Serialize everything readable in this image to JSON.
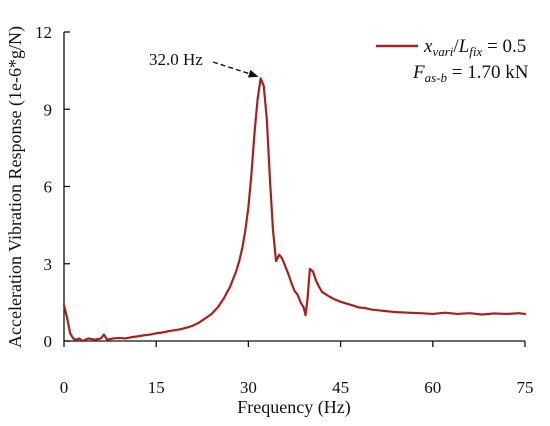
{
  "chart_data": {
    "type": "line",
    "xlabel": "Frequency (Hz)",
    "ylabel": "Acceleration Vibration Response (1e-6*g/N)",
    "xlim": [
      0,
      75
    ],
    "ylim": [
      0,
      12
    ],
    "xticks": [
      0,
      15,
      30,
      45,
      60,
      75
    ],
    "yticks": [
      0,
      3,
      6,
      9,
      12
    ],
    "xtick_labels": [
      "0",
      "15",
      "30",
      "45",
      "60",
      "75"
    ],
    "ytick_labels": [
      "0",
      "3",
      "6",
      "9",
      "12"
    ],
    "grid": false,
    "legend_position": "top-right",
    "legend": {
      "line1": {
        "var1": "x",
        "sub1": "vari",
        "sep": "/",
        "var2": "L",
        "sub2": "fix",
        "value": " = 0.5"
      },
      "line2": {
        "var": "F",
        "sub": "as-b",
        "value": " = 1.70 kN"
      }
    },
    "annotation": {
      "text": "32.0 Hz",
      "x": 32.0,
      "y": 10.2
    },
    "series": [
      {
        "color": "#a3221f",
        "x": [
          0,
          0.5,
          1,
          1.5,
          2,
          2.5,
          3,
          4,
          5,
          6,
          6.5,
          7,
          8,
          9,
          10,
          11,
          12,
          13,
          14,
          15,
          16,
          17,
          18,
          19,
          20,
          21,
          22,
          23,
          24,
          25,
          26,
          27,
          28,
          28.5,
          29,
          29.5,
          30,
          30.5,
          31,
          31.5,
          32,
          32.5,
          33,
          33.5,
          34,
          34.5,
          35,
          35.5,
          36,
          36.5,
          37,
          37.5,
          38,
          38.5,
          39,
          39.3,
          39.6,
          40,
          40.5,
          41,
          41.5,
          42,
          43,
          44,
          45,
          46,
          47,
          48,
          49,
          50,
          52,
          54,
          56,
          58,
          60,
          62,
          64,
          66,
          68,
          70,
          72,
          74,
          75
        ],
        "y": [
          1.4,
          0.9,
          0.3,
          0.1,
          0.05,
          0.1,
          0.0,
          0.1,
          0.05,
          0.1,
          0.25,
          0.05,
          0.1,
          0.12,
          0.1,
          0.15,
          0.18,
          0.22,
          0.25,
          0.3,
          0.33,
          0.38,
          0.42,
          0.46,
          0.52,
          0.6,
          0.72,
          0.88,
          1.05,
          1.3,
          1.65,
          2.1,
          2.7,
          3.1,
          3.6,
          4.3,
          5.2,
          6.5,
          8.1,
          9.4,
          10.2,
          9.9,
          8.6,
          6.3,
          4.3,
          3.1,
          3.35,
          3.2,
          2.9,
          2.6,
          2.25,
          1.95,
          1.8,
          1.5,
          1.3,
          1.0,
          1.6,
          2.8,
          2.7,
          2.35,
          2.1,
          1.9,
          1.75,
          1.62,
          1.52,
          1.45,
          1.38,
          1.3,
          1.28,
          1.22,
          1.17,
          1.12,
          1.1,
          1.08,
          1.05,
          1.1,
          1.05,
          1.08,
          1.03,
          1.07,
          1.05,
          1.08,
          1.05
        ]
      }
    ]
  }
}
